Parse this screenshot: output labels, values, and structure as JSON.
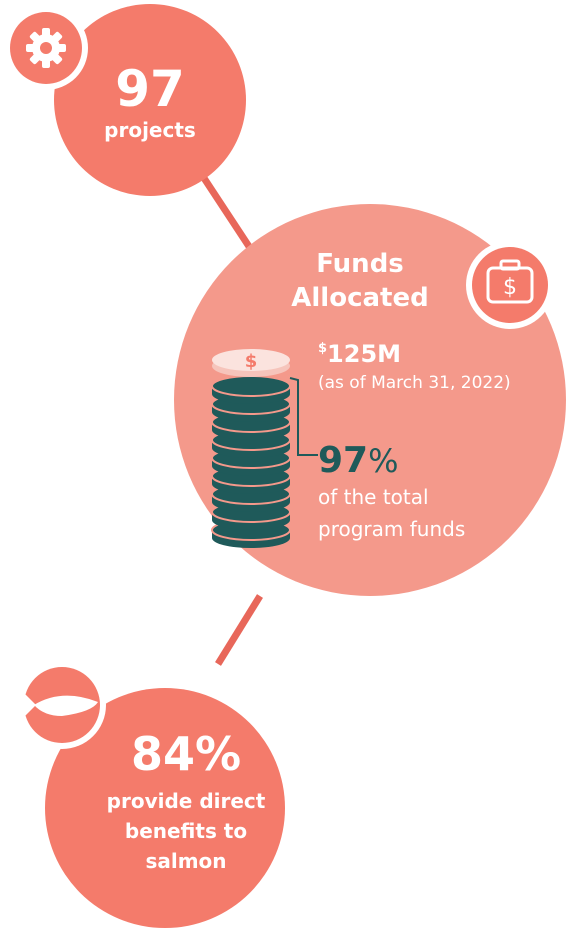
{
  "projects": {
    "value": "97",
    "label": "projects"
  },
  "funds": {
    "title": [
      "Funds",
      "Allocated"
    ],
    "currency": "$",
    "amount": "125M",
    "date": "(as of March 31, 2022)",
    "share": "97",
    "share_unit": "%",
    "share_text": [
      "of the total",
      "program funds"
    ],
    "coin_symbol": "$",
    "icon_symbol": "$"
  },
  "salmon": {
    "value": "84%",
    "text": [
      "provide direct",
      "benefits to",
      "salmon"
    ]
  }
}
